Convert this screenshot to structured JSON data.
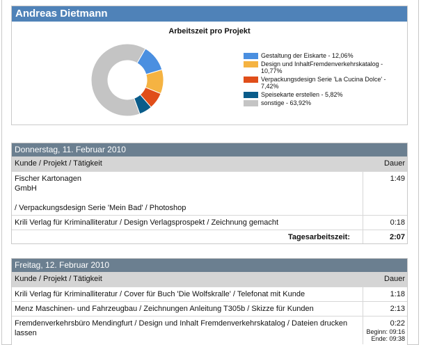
{
  "person": {
    "name": "Andreas Dietmann"
  },
  "chart_data": {
    "type": "pie",
    "title": "Arbeitszeit pro Projekt",
    "slices": [
      {
        "label": "Gestaltung der Eiskarte - 12,06%",
        "value": 12.06,
        "color": "#4a8fe0"
      },
      {
        "label": "Design und InhaltFremdenverkehrskatalog - 10,77%",
        "value": 10.77,
        "color": "#f5b342"
      },
      {
        "label": "Verpackungsdesign Serie 'La Cucina Dolce' - 7,42%",
        "value": 7.42,
        "color": "#e04e1a"
      },
      {
        "label": "Speisekarte erstellen - 5,82%",
        "value": 5.82,
        "color": "#0a5c8a"
      },
      {
        "label": "sonstige - 63,92%",
        "value": 63.92,
        "color": "#c4c4c4"
      }
    ]
  },
  "days": [
    {
      "title": "Donnerstag, 11. Februar 2010",
      "col_activity": "Kunde / Projekt / Tätigkeit",
      "col_duration": "Dauer",
      "entries": [
        {
          "line1": "Fischer Kartonagen",
          "line2": "GmbH",
          "line3": "/ Verpackungsdesign Serie 'Mein Bad' / Photoshop",
          "duration": "1:49"
        },
        {
          "line1": "Krili Verlag für Kriminalliteratur / Design Verlagsprospekt / Zeichnung gemacht",
          "duration": "0:18"
        }
      ],
      "total_label": "Tagesarbeitszeit:",
      "total_value": "2:07"
    },
    {
      "title": "Freitag, 12. Februar 2010",
      "col_activity": "Kunde / Projekt / Tätigkeit",
      "col_duration": "Dauer",
      "entries": [
        {
          "line1": "Krili Verlag für Kriminalliteratur / Cover für Buch 'Die Wolfskralle' / Telefonat mit Kunde",
          "duration": "1:18"
        },
        {
          "line1": "Menz Maschinen- und Fahrzeugbau / Zeichnungen Anleitung T305b / Skizze für Kunden",
          "duration": "2:13"
        },
        {
          "line1": "Fremdenverkehrsbüro Mendingfurt / Design und Inhalt Fremdenverkehrskatalog / Dateien drucken lassen",
          "duration": "0:22",
          "begin": "Beginn: 09:16",
          "end": "Ende: 09:38"
        }
      ]
    }
  ]
}
